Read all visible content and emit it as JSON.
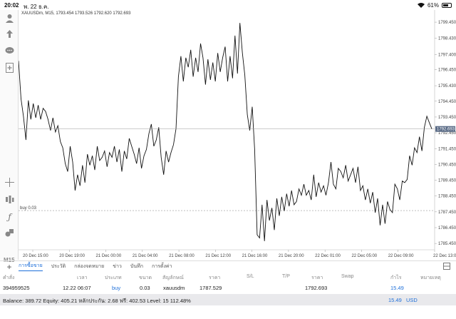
{
  "status_bar": {
    "time": "20:02",
    "date": "พ. 22 ธ.ค.",
    "battery": "61%",
    "battery_level": 0.61
  },
  "toolbar": {
    "icons": [
      "account-icon",
      "trade-icon",
      "chat-icon",
      "add-chart-icon",
      "crosshair-icon",
      "indicators-icon",
      "function-icon",
      "objects-icon"
    ],
    "timeframe": "M15"
  },
  "chart": {
    "header": "XAUUSDm, M15, 1793.454 1793.526 1792.620 1792.693",
    "current_price": "1792.693",
    "order_line_label": "buy 0.03",
    "colors": {
      "line": "#111111",
      "grid": "#eeeeee",
      "price_tag_bg": "#5a6b86",
      "order_line": "#999999"
    }
  },
  "chart_data": {
    "type": "line",
    "price_ticks": [
      "1799.450",
      "1798.430",
      "1797.400",
      "1796.450",
      "1795.430",
      "1794.450",
      "1793.450",
      "1792.450",
      "1791.450",
      "1790.450",
      "1789.450",
      "1788.450",
      "1787.450",
      "1786.450",
      "1785.450"
    ],
    "time_ticks": [
      "20 Dec 15:00",
      "20 Dec 19:00",
      "21 Dec 00:00",
      "21 Dec 04:00",
      "21 Dec 08:00",
      "21 Dec 12:00",
      "21 Dec 16:00",
      "21 Dec 20:00",
      "22 Dec 01:00",
      "22 Dec 05:00",
      "22 Dec 09:00",
      "22 Dec 13:00"
    ],
    "ylim": [
      1785.0,
      1800.0
    ],
    "current": 1792.693,
    "order_price": 1787.529,
    "y": [
      1797.0,
      1794.6,
      1793.5,
      1792.0,
      1794.5,
      1793.3,
      1794.3,
      1793.4,
      1794.2,
      1793.3,
      1794.0,
      1793.8,
      1793.3,
      1792.6,
      1793.4,
      1792.5,
      1792.9,
      1791.9,
      1791.5,
      1790.5,
      1790.0,
      1791.6,
      1790.6,
      1788.8,
      1789.8,
      1789.1,
      1790.4,
      1789.3,
      1791.1,
      1790.4,
      1791.0,
      1790.1,
      1791.6,
      1790.7,
      1790.9,
      1791.3,
      1790.3,
      1791.2,
      1790.9,
      1791.6,
      1790.6,
      1791.4,
      1790.0,
      1791.3,
      1790.8,
      1792.1,
      1791.6,
      1791.1,
      1790.5,
      1791.5,
      1790.2,
      1791.0,
      1791.4,
      1792.4,
      1793.0,
      1791.6,
      1792.0,
      1792.8,
      1790.9,
      1789.8,
      1791.3,
      1790.6,
      1791.2,
      1791.7,
      1792.7,
      1796.0,
      1797.3,
      1795.7,
      1797.2,
      1796.6,
      1797.7,
      1796.0,
      1797.2,
      1796.3,
      1798.1,
      1797.2,
      1795.5,
      1797.1,
      1795.8,
      1796.9,
      1795.7,
      1797.5,
      1796.3,
      1797.2,
      1797.9,
      1795.7,
      1797.3,
      1795.9,
      1798.6,
      1796.2,
      1799.4,
      1797.5,
      1796.1,
      1793.6,
      1792.6,
      1794.1,
      1791.4,
      1786.0,
      1785.8,
      1787.9,
      1785.6,
      1788.2,
      1786.9,
      1787.7,
      1786.3,
      1788.3,
      1787.2,
      1788.4,
      1787.5,
      1788.6,
      1787.8,
      1788.8,
      1787.9,
      1788.1,
      1788.9,
      1788.5,
      1789.2,
      1788.5,
      1788.8,
      1788.2,
      1789.8,
      1788.4,
      1789.3,
      1788.7,
      1789.1,
      1788.5,
      1789.3,
      1790.6,
      1789.2,
      1788.9,
      1790.2,
      1790.0,
      1789.6,
      1790.4,
      1789.4,
      1789.8,
      1790.2,
      1789.3,
      1790.3,
      1788.8,
      1789.1,
      1788.2,
      1788.9,
      1788.0,
      1788.7,
      1787.4,
      1788.3,
      1786.6,
      1787.9,
      1786.7,
      1788.1,
      1787.6,
      1787.4,
      1789.2,
      1788.9,
      1788.2,
      1789.4,
      1789.3,
      1789.5,
      1791.0,
      1790.4,
      1791.5,
      1791.2,
      1792.2,
      1791.3,
      1792.8,
      1793.5,
      1793.1,
      1792.7
    ]
  },
  "tabs": {
    "items": [
      "การซื้อขาย",
      "ประวัติ",
      "กล่องจดหมาย",
      "ข่าว",
      "บันทึก",
      "การตั้งค่า"
    ],
    "active_index": 0
  },
  "table": {
    "headers": [
      "คำสั่ง",
      "เวลา",
      "ประเภท",
      "ขนาด",
      "สัญลักษณ์",
      "ราคา",
      "S/L",
      "T/P",
      "ราคา",
      "Swap",
      "กำไร",
      "หมายเหตุ"
    ],
    "row": {
      "order": "394959525",
      "time": "12.22 06:07",
      "type": "buy",
      "size": "0.03",
      "symbol": "xauusdm",
      "open_price": "1787.529",
      "current_price": "1792.693",
      "profit": "15.49"
    }
  },
  "balance": {
    "text": "Balance: 389.72 Equity: 405.21 หลักประกัน: 2.68 ฟรี: 402.53 Level: 15 112.48%",
    "total": "15.49",
    "currency": "USD"
  }
}
